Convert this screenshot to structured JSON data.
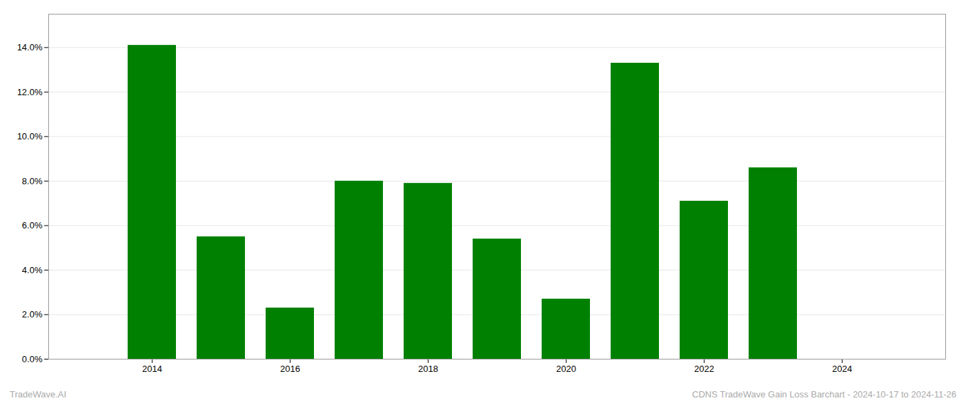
{
  "chart_data": {
    "type": "bar",
    "x": [
      2014,
      2015,
      2016,
      2017,
      2018,
      2019,
      2020,
      2021,
      2022,
      2023
    ],
    "values": [
      0.141,
      0.055,
      0.023,
      0.08,
      0.079,
      0.054,
      0.027,
      0.133,
      0.071,
      0.086
    ],
    "color": "#008000",
    "xlim": [
      2012.5,
      2025.5
    ],
    "xticks": [
      2014,
      2016,
      2018,
      2020,
      2022,
      2024
    ],
    "ylim": [
      0,
      0.155
    ],
    "yticks": [
      {
        "value": 0.0,
        "label": "0.0%"
      },
      {
        "value": 0.02,
        "label": "2.0%"
      },
      {
        "value": 0.04,
        "label": "4.0%"
      },
      {
        "value": 0.06,
        "label": "6.0%"
      },
      {
        "value": 0.08,
        "label": "8.0%"
      },
      {
        "value": 0.1,
        "label": "10.0%"
      },
      {
        "value": 0.12,
        "label": "12.0%"
      },
      {
        "value": 0.14,
        "label": "14.0%"
      }
    ],
    "grid": true,
    "annotations": [
      "TradeWave.AI",
      "CDNS TradeWave Gain Loss Barchart - 2024-10-17 to 2024-11-26"
    ]
  }
}
